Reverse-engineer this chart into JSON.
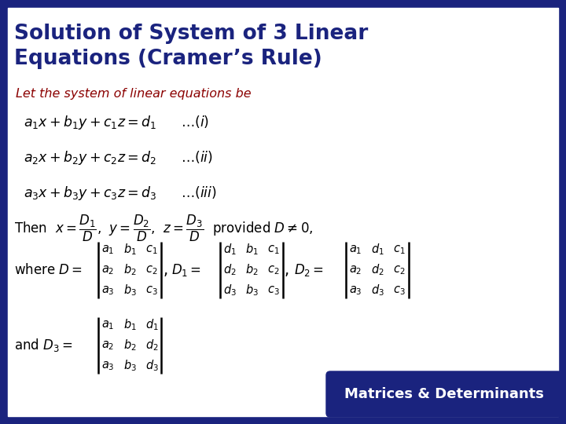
{
  "title_line1": "Solution of System of 3 Linear",
  "title_line2": "Equations (Cramer’s Rule)",
  "title_color": "#1a237e",
  "border_color": "#1a237e",
  "subtitle": "Let the system of linear equations be",
  "subtitle_color": "#8b0000",
  "eq1": "$a_1x + b_1y + c_1z = d_1$",
  "eq1_label": "$\\ldots(i)$",
  "eq2": "$a_2x + b_2y + c_2z = d_2$",
  "eq2_label": "$\\ldots(ii)$",
  "eq3": "$a_3x + b_3y + c_3z = d_3$",
  "eq3_label": "$\\ldots(iii)$",
  "footer_text": "Matrices & Determinants",
  "footer_bg": "#1a237e",
  "footer_text_color": "#ffffff",
  "bg_color": "#ffffff",
  "outer_bg": "#1a237e"
}
